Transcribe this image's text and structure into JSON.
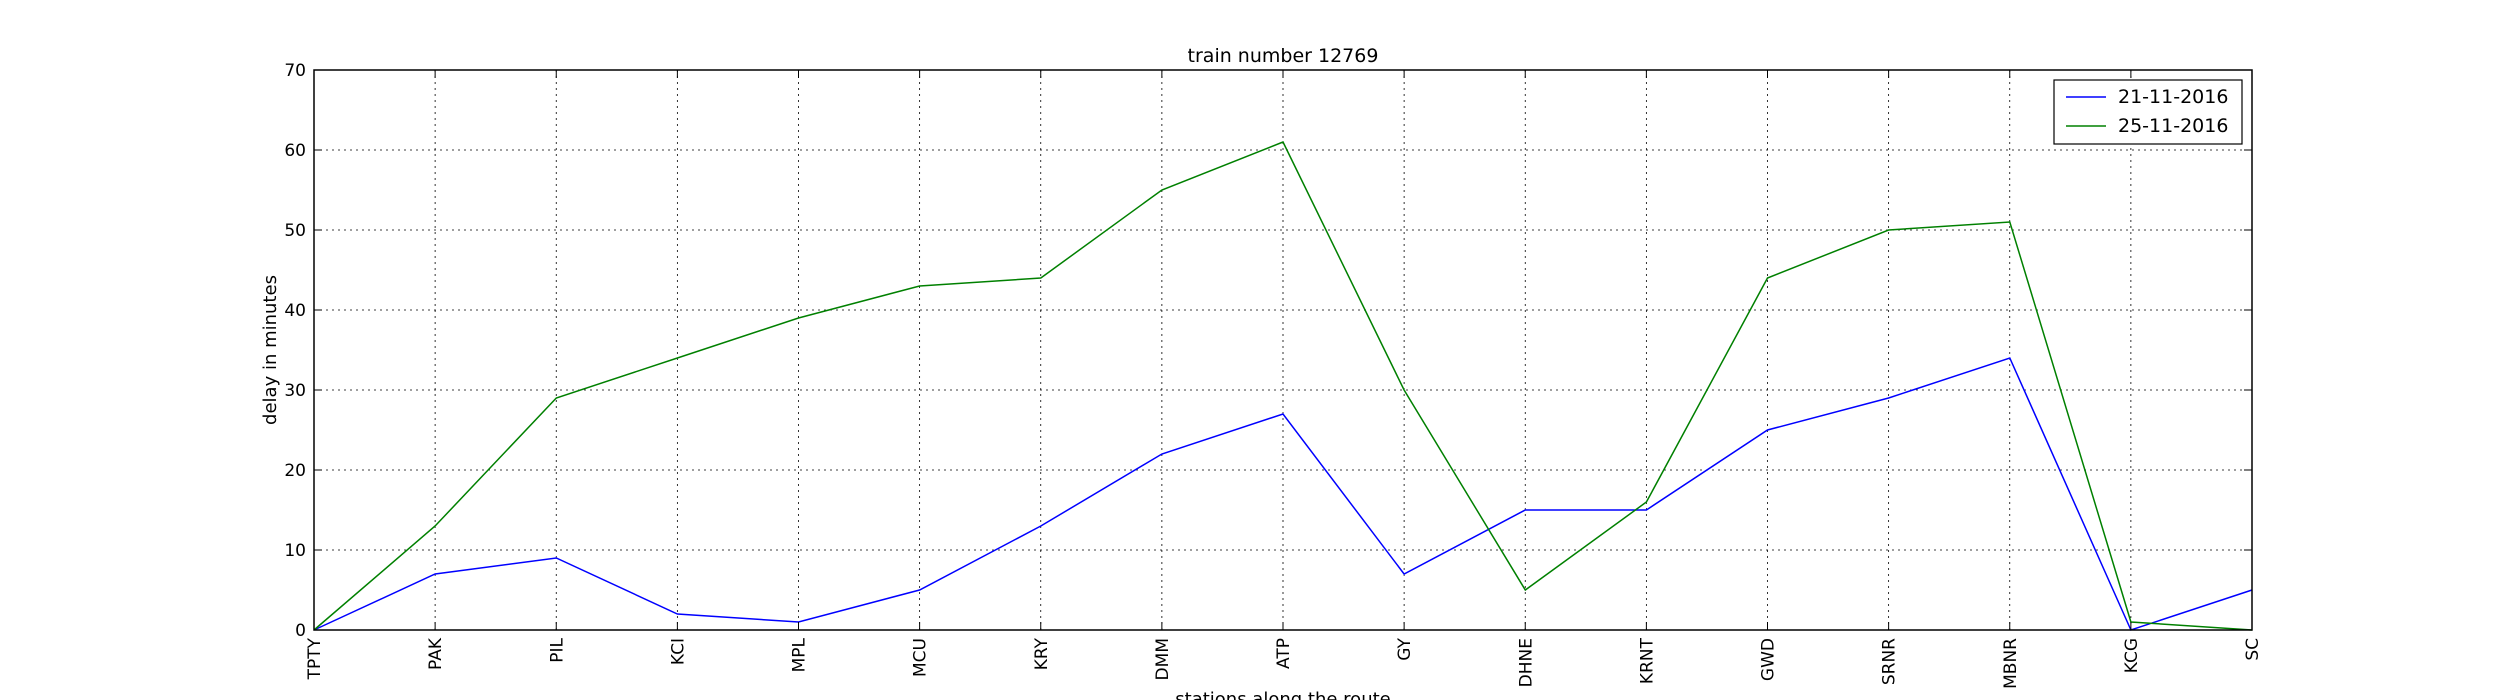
{
  "chart_data": {
    "type": "line",
    "title": "train number 12769",
    "xlabel": "stations along the route",
    "ylabel": "delay in minutes",
    "categories": [
      "TPTY",
      "PAK",
      "PIL",
      "KCI",
      "MPL",
      "MCU",
      "KRY",
      "DMM",
      "ATP",
      "GY",
      "DHNE",
      "KRNT",
      "GWD",
      "SRNR",
      "MBNR",
      "KCG",
      "SC"
    ],
    "ylim": [
      0,
      70
    ],
    "yticks": [
      0,
      10,
      20,
      30,
      40,
      50,
      60,
      70
    ],
    "grid": true,
    "legend_position": "top-right",
    "series": [
      {
        "name": "21-11-2016",
        "color": "#0000ff",
        "values": [
          0,
          7,
          9,
          2,
          1,
          5,
          13,
          22,
          27,
          7,
          15,
          15,
          25,
          29,
          34,
          0,
          5
        ]
      },
      {
        "name": "25-11-2016",
        "color": "#008000",
        "values": [
          0,
          13,
          29,
          34,
          39,
          43,
          44,
          55,
          61,
          30,
          5,
          16,
          44,
          50,
          51,
          1,
          0
        ]
      }
    ]
  }
}
